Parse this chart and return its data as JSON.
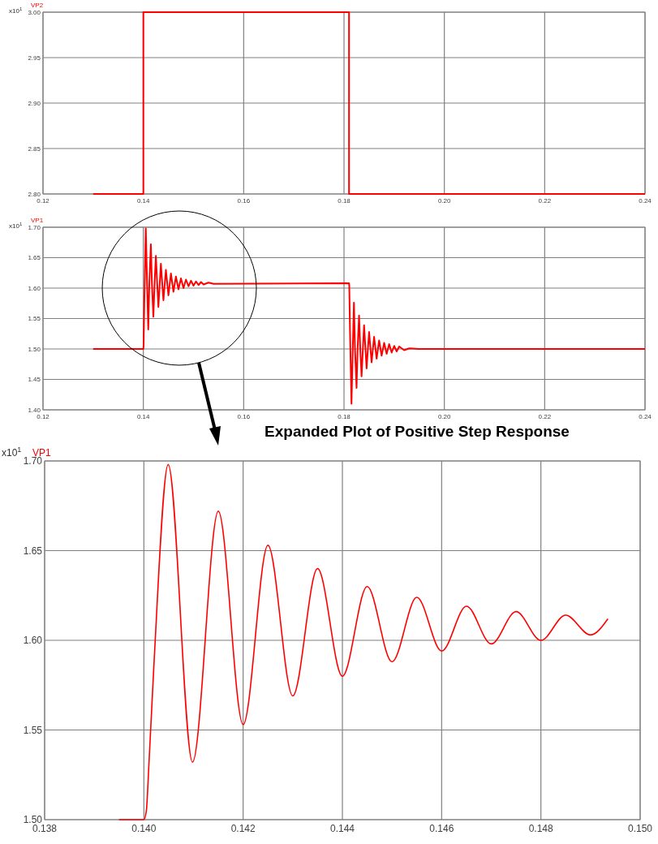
{
  "chart_data": [
    {
      "type": "step",
      "ylabel": "x10$^{1}$",
      "xlim": [
        0.12,
        0.24
      ],
      "xticks": [
        0.12,
        0.14,
        0.16,
        0.18,
        {
          "value": 0.2,
          "label": "0.20"
        },
        0.22,
        0.24
      ],
      "ylim": [
        2.8,
        3.0
      ],
      "yticks": [
        {
          "value": 2.8,
          "label": "2.80"
        },
        2.85,
        {
          "value": 2.9,
          "label": "2.90"
        },
        2.95,
        {
          "value": 3.0,
          "label": "3.00"
        }
      ],
      "grid": true,
      "legend": "top left",
      "series": [
        {
          "name": "VP2",
          "color": "#ff0000",
          "x": [
            0.13,
            0.14,
            0.181,
            0.24
          ],
          "values": [
            2.8,
            3.0,
            2.8,
            2.8
          ]
        }
      ]
    },
    {
      "type": "line",
      "ylabel": "x10$^{1}$",
      "xlim": [
        0.12,
        0.24
      ],
      "xticks": [
        0.12,
        0.14,
        0.16,
        0.18,
        {
          "value": 0.2,
          "label": "0.20"
        },
        0.22,
        0.24
      ],
      "ylim": [
        1.4,
        1.7
      ],
      "yticks": [
        {
          "value": 1.4,
          "label": "1.40"
        },
        1.45,
        {
          "value": 1.5,
          "label": "1.50"
        },
        1.55,
        {
          "value": 1.6,
          "label": "1.60"
        },
        1.65,
        {
          "value": 1.7,
          "label": "1.70"
        }
      ],
      "grid": true,
      "legend": "top left",
      "series": [
        {
          "name": "VP1",
          "color": "#ff0000",
          "x": [
            0.13,
            0.14,
            0.14005,
            0.1402,
            0.14049,
            0.14074,
            0.14098,
            0.1412,
            0.1415,
            0.1417,
            0.142,
            0.14225,
            0.1425,
            0.14275,
            0.143,
            0.1435,
            0.144,
            0.1445,
            0.145,
            0.1455,
            0.146,
            0.1465,
            0.147,
            0.1475,
            0.148,
            0.1485,
            0.149,
            0.1495,
            0.15,
            0.1505,
            0.151,
            0.1515,
            0.152,
            0.153,
            0.154,
            0.181,
            0.18105,
            0.1812,
            0.18149,
            0.18174,
            0.18198,
            0.1822,
            0.1825,
            0.1827,
            0.183,
            0.18325,
            0.1835,
            0.18375,
            0.184,
            0.1845,
            0.185,
            0.1855,
            0.186,
            0.1865,
            0.187,
            0.1875,
            0.188,
            0.1885,
            0.189,
            0.1895,
            0.19,
            0.1905,
            0.191,
            0.192,
            0.193,
            0.195,
            0.24
          ],
          "values": [
            1.5,
            1.5,
            1.505,
            1.58,
            1.698,
            1.61,
            1.532,
            1.61,
            1.672,
            1.61,
            1.553,
            1.61,
            1.653,
            1.61,
            1.569,
            1.64,
            1.58,
            1.63,
            1.588,
            1.624,
            1.594,
            1.619,
            1.598,
            1.616,
            1.6,
            1.614,
            1.603,
            1.612,
            1.604,
            1.611,
            1.605,
            1.61,
            1.606,
            1.609,
            1.607,
            1.608,
            1.603,
            1.528,
            1.41,
            1.498,
            1.576,
            1.498,
            1.436,
            1.498,
            1.555,
            1.498,
            1.455,
            1.498,
            1.539,
            1.468,
            1.528,
            1.478,
            1.52,
            1.484,
            1.514,
            1.489,
            1.51,
            1.492,
            1.508,
            1.494,
            1.505,
            1.496,
            1.504,
            1.498,
            1.501,
            1.5,
            1.5
          ]
        }
      ]
    },
    {
      "type": "line",
      "title": "Expanded Plot of Positive Step Response",
      "ylabel": "x10$^{1}$",
      "xlim": [
        0.138,
        0.15
      ],
      "xticks": [
        0.138,
        {
          "value": 0.14,
          "label": "0.140"
        },
        0.142,
        0.144,
        0.146,
        0.148,
        {
          "value": 0.15,
          "label": "0.150"
        }
      ],
      "ylim": [
        1.5,
        1.7
      ],
      "yticks": [
        {
          "value": 1.5,
          "label": "1.50"
        },
        1.55,
        {
          "value": 1.6,
          "label": "1.60"
        },
        1.65,
        {
          "value": 1.7,
          "label": "1.70"
        }
      ],
      "grid": true,
      "legend": "top left",
      "series": [
        {
          "name": "VP1",
          "color": "#ff0000",
          "x": [
            0.1395,
            0.14,
            0.14005,
            0.1401,
            0.1402,
            0.14049,
            0.14098,
            0.1415,
            0.142,
            0.1425,
            0.143,
            0.1435,
            0.144,
            0.1445,
            0.145,
            0.1455,
            0.146,
            0.1465,
            0.147,
            0.1475,
            0.148,
            0.1485,
            0.149,
            0.14935
          ],
          "values": [
            1.5,
            1.5,
            1.505,
            1.53,
            1.585,
            1.698,
            1.532,
            1.672,
            1.553,
            1.653,
            1.569,
            1.64,
            1.58,
            1.63,
            1.588,
            1.624,
            1.594,
            1.619,
            1.598,
            1.616,
            1.6,
            1.614,
            1.603,
            1.612
          ]
        }
      ]
    }
  ]
}
